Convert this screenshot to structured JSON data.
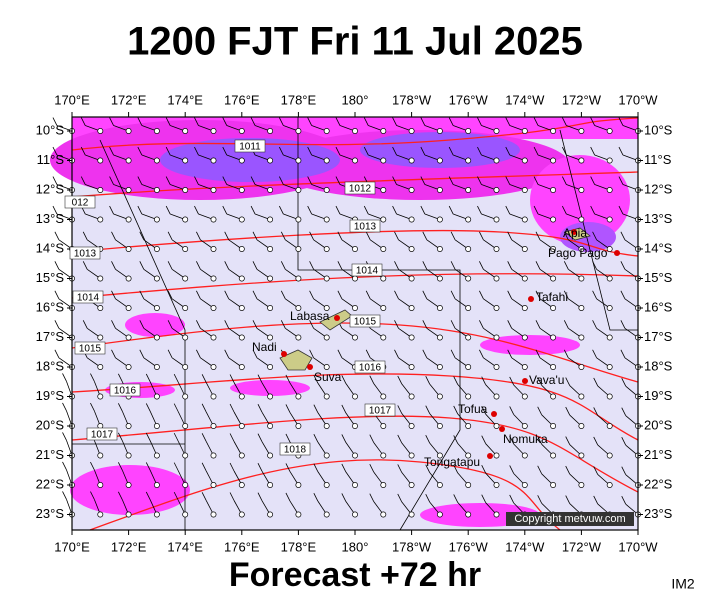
{
  "header": {
    "title": "1200 FJT Fri 11 Jul 2025"
  },
  "map": {
    "lon_labels": [
      "170°E",
      "172°E",
      "174°E",
      "176°E",
      "178°E",
      "180°",
      "178°W",
      "176°W",
      "174°W",
      "172°W",
      "170°W"
    ],
    "lat_labels": [
      "10°S",
      "11°S",
      "12°S",
      "13°S",
      "14°S",
      "15°S",
      "16°S",
      "17°S",
      "18°S",
      "19°S",
      "20°S",
      "21°S",
      "22°S",
      "23°S"
    ],
    "isobar_labels": [
      "1011",
      "1012",
      "012",
      "1013",
      "1013",
      "1014",
      "1014",
      "1015",
      "1015",
      "1016",
      "1016",
      "1017",
      "1017",
      "1018"
    ],
    "places": [
      "Apia",
      "Pago Pago",
      "Tafahi",
      "Labasa",
      "Nadi",
      "Suva",
      "Vava'u",
      "Tofua",
      "Nomuka",
      "Tongatapu"
    ],
    "copyright": "Copyright metvuw.com"
  },
  "footer": {
    "caption": "Forecast +72 hr",
    "code": "IM2"
  }
}
